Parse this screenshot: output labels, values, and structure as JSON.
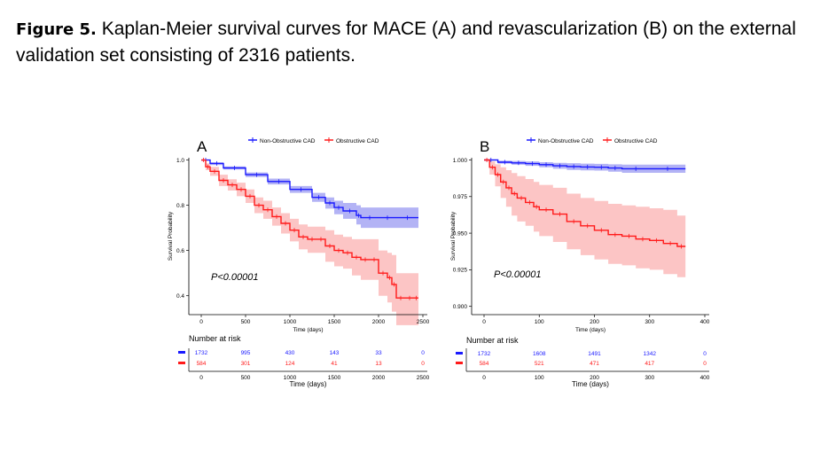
{
  "caption": {
    "label": "Figure 5.",
    "text": "Kaplan-Meier survival curves for MACE (A) and revascularization (B) on the external validation set consisting of 2316 patients."
  },
  "colors": {
    "non_obstructive": "#1a1aff",
    "obstructive": "#ff1a1a"
  },
  "chart_data": [
    {
      "type": "line",
      "panel": "A",
      "xlabel": "Time (days)",
      "ylabel": "Survival Probability",
      "xlim": [
        0,
        2500
      ],
      "ylim": [
        0.34,
        1.01
      ],
      "xticks": [
        0,
        500,
        1000,
        1500,
        2000,
        2500
      ],
      "yticks": [
        0.4,
        0.6,
        0.8,
        1.0
      ],
      "ytick_labels": [
        "0.4",
        "0.6",
        "0.8",
        "1.0"
      ],
      "annotation": "P<0.00001",
      "legend": [
        "Non-Obstructive CAD",
        "Obstructive CAD"
      ],
      "series": [
        {
          "name": "Non-Obstructive CAD",
          "x": [
            0,
            100,
            250,
            500,
            750,
            1000,
            1250,
            1400,
            1500,
            1600,
            1750,
            1800,
            2000,
            2200,
            2450
          ],
          "y": [
            1.0,
            0.985,
            0.965,
            0.935,
            0.905,
            0.87,
            0.835,
            0.81,
            0.79,
            0.775,
            0.755,
            0.745,
            0.745,
            0.745,
            0.745
          ],
          "ci_upper": [
            1.0,
            0.99,
            0.972,
            0.945,
            0.918,
            0.885,
            0.855,
            0.835,
            0.82,
            0.81,
            0.8,
            0.79,
            0.79,
            0.79,
            0.79
          ],
          "ci_lower": [
            1.0,
            0.978,
            0.958,
            0.925,
            0.892,
            0.855,
            0.815,
            0.785,
            0.76,
            0.74,
            0.715,
            0.7,
            0.7,
            0.7,
            0.7
          ]
        },
        {
          "name": "Obstructive CAD",
          "x": [
            0,
            50,
            100,
            200,
            300,
            400,
            500,
            600,
            700,
            800,
            900,
            1000,
            1100,
            1200,
            1300,
            1400,
            1500,
            1600,
            1700,
            1800,
            1900,
            2000,
            2100,
            2150,
            2200,
            2300,
            2400,
            2450
          ],
          "y": [
            1.0,
            0.97,
            0.95,
            0.91,
            0.89,
            0.87,
            0.84,
            0.8,
            0.78,
            0.75,
            0.72,
            0.69,
            0.66,
            0.65,
            0.65,
            0.62,
            0.6,
            0.59,
            0.57,
            0.56,
            0.56,
            0.5,
            0.48,
            0.45,
            0.39,
            0.39,
            0.39,
            0.39
          ],
          "ci_upper": [
            1.0,
            0.985,
            0.97,
            0.935,
            0.915,
            0.9,
            0.87,
            0.835,
            0.82,
            0.79,
            0.765,
            0.74,
            0.715,
            0.705,
            0.705,
            0.69,
            0.67,
            0.66,
            0.65,
            0.65,
            0.65,
            0.6,
            0.59,
            0.58,
            0.5,
            0.5,
            0.5,
            0.5
          ],
          "ci_lower": [
            1.0,
            0.955,
            0.93,
            0.885,
            0.865,
            0.84,
            0.81,
            0.765,
            0.74,
            0.71,
            0.675,
            0.64,
            0.605,
            0.59,
            0.59,
            0.55,
            0.53,
            0.52,
            0.49,
            0.47,
            0.47,
            0.4,
            0.37,
            0.33,
            0.27,
            0.27,
            0.27,
            0.27
          ]
        }
      ],
      "risk_table": {
        "title": "Number at risk",
        "times": [
          0,
          500,
          1000,
          1500,
          2000,
          2500
        ],
        "rows": [
          {
            "name": "Non-Obstructive CAD",
            "counts": [
              "1732",
              "995",
              "430",
              "143",
              "33",
              "0"
            ]
          },
          {
            "name": "Obstructive CAD",
            "counts": [
              "584",
              "301",
              "124",
              "41",
              "13",
              "0"
            ]
          }
        ],
        "xlabel": "Time (days)"
      }
    },
    {
      "type": "line",
      "panel": "B",
      "xlabel": "Time (days)",
      "ylabel": "Survival Probability",
      "xlim": [
        0,
        400
      ],
      "ylim": [
        0.898,
        1.0015
      ],
      "xticks": [
        0,
        100,
        200,
        300,
        400
      ],
      "yticks": [
        0.9,
        0.925,
        0.95,
        0.975,
        1.0
      ],
      "ytick_labels": [
        "0.900",
        "0.925",
        "0.950",
        "0.975",
        "1.000"
      ],
      "annotation": "P<0.00001",
      "legend": [
        "Non-Obstructive CAD",
        "Obstructive CAD"
      ],
      "series": [
        {
          "name": "Non-Obstructive CAD",
          "x": [
            0,
            25,
            50,
            75,
            100,
            125,
            150,
            175,
            200,
            225,
            250,
            300,
            365
          ],
          "y": [
            1.0,
            0.9985,
            0.998,
            0.9975,
            0.9968,
            0.996,
            0.9955,
            0.9952,
            0.995,
            0.9945,
            0.994,
            0.994,
            0.994
          ],
          "ci_upper": [
            1.0,
            0.9995,
            0.9993,
            0.999,
            0.9985,
            0.998,
            0.9978,
            0.9975,
            0.9973,
            0.997,
            0.9968,
            0.9968,
            0.9968
          ],
          "ci_lower": [
            1.0,
            0.9975,
            0.9967,
            0.996,
            0.995,
            0.994,
            0.9932,
            0.9929,
            0.9927,
            0.992,
            0.9912,
            0.9912,
            0.9912
          ]
        },
        {
          "name": "Obstructive CAD",
          "x": [
            0,
            10,
            20,
            30,
            40,
            50,
            60,
            75,
            90,
            100,
            125,
            150,
            175,
            200,
            225,
            250,
            275,
            300,
            325,
            350,
            365
          ],
          "y": [
            1.0,
            0.995,
            0.99,
            0.985,
            0.981,
            0.977,
            0.974,
            0.971,
            0.968,
            0.966,
            0.963,
            0.958,
            0.955,
            0.952,
            0.949,
            0.948,
            0.946,
            0.945,
            0.943,
            0.941,
            0.941
          ],
          "ci_upper": [
            1.0,
            0.999,
            0.997,
            0.995,
            0.993,
            0.991,
            0.989,
            0.987,
            0.985,
            0.983,
            0.981,
            0.977,
            0.974,
            0.972,
            0.97,
            0.969,
            0.968,
            0.967,
            0.966,
            0.962,
            0.962
          ],
          "ci_lower": [
            1.0,
            0.99,
            0.982,
            0.974,
            0.968,
            0.962,
            0.958,
            0.955,
            0.951,
            0.948,
            0.944,
            0.939,
            0.935,
            0.932,
            0.929,
            0.928,
            0.926,
            0.925,
            0.922,
            0.92,
            0.92
          ]
        }
      ],
      "risk_table": {
        "title": "Number at risk",
        "times": [
          0,
          100,
          200,
          300,
          400
        ],
        "rows": [
          {
            "name": "Non-Obstructive CAD",
            "counts": [
              "1732",
              "1608",
              "1491",
              "1342",
              "0"
            ]
          },
          {
            "name": "Obstructive CAD",
            "counts": [
              "584",
              "521",
              "471",
              "417",
              "0"
            ]
          }
        ],
        "xlabel": "Time (days)"
      }
    }
  ]
}
